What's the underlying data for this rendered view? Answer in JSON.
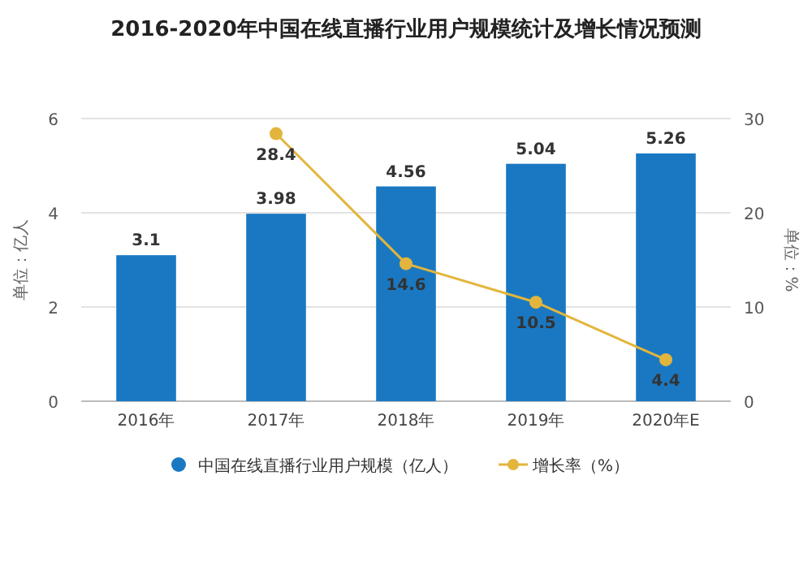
{
  "chart_data": {
    "type": "bar",
    "title": "2016-2020年中国在线直播行业用户规模统计及增长情况预测",
    "ylabel": "单位：亿人",
    "y2label": "单位：%",
    "categories": [
      "2016年",
      "2017年",
      "2018年",
      "2019年",
      "2020年E"
    ],
    "series": [
      {
        "name": "中国在线直播行业用户规模（亿人）",
        "color": "#1a78c2",
        "values": [
          3.1,
          3.98,
          4.56,
          5.04,
          5.26
        ]
      },
      {
        "name": "增长率（%）",
        "type": "line",
        "axis": "y2",
        "color": "#e3b53c",
        "values": [
          null,
          28.4,
          14.6,
          10.5,
          4.4
        ]
      }
    ],
    "ylim": [
      0,
      6
    ],
    "yticks": [
      0,
      2,
      4,
      6
    ],
    "y2lim": [
      0,
      30
    ],
    "y2ticks": [
      0,
      10,
      20,
      30
    ],
    "grid": "y",
    "legend": "bottom",
    "data_labels": true,
    "marker": "circle"
  }
}
